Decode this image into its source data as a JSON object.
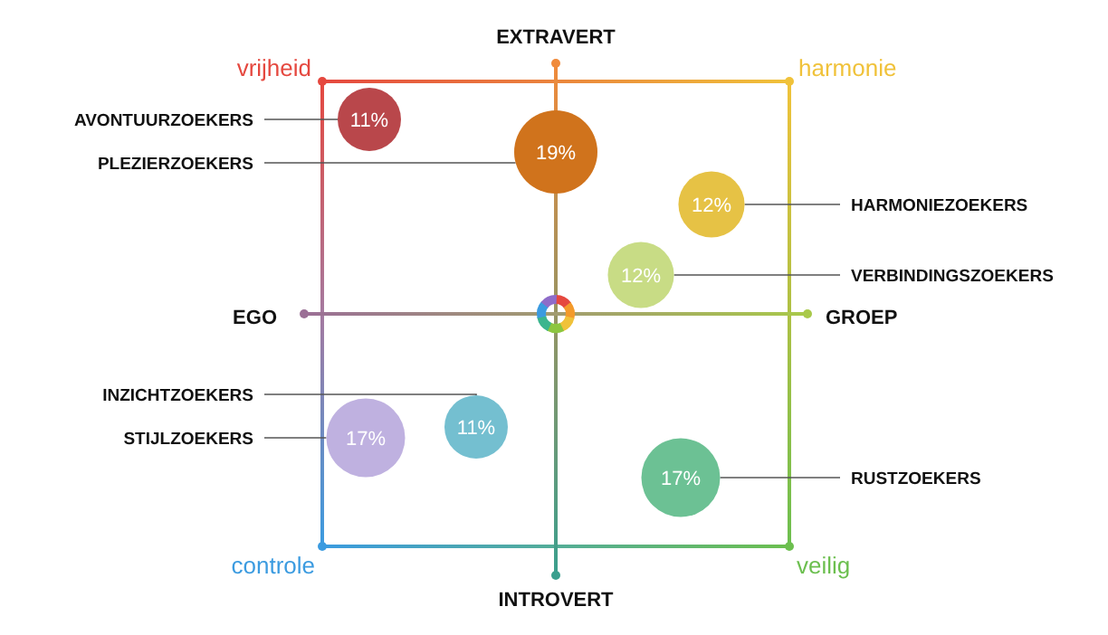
{
  "chart_data": {
    "type": "other",
    "annotations": [
      "EXTRAVERT",
      "vrijheid",
      "harmonie",
      "EGO",
      "GROEP",
      "controle",
      "INTROVERT",
      "veilig"
    ],
    "categories": [
      "AVONTUURZOEKERS",
      "PLEZIERZOEKERS",
      "HARMONIEZOEKERS",
      "VERBINDINGSZOEKERS",
      "INZICHTZOEKERS",
      "STIJLZOEKERS",
      "RUSTZOEKERS"
    ],
    "values": [
      11,
      19,
      12,
      12,
      11,
      17,
      17
    ],
    "colors": [
      "#b9474b",
      "#d0731c",
      "#e6c245",
      "#c8dc85",
      "#74bfd0",
      "#bfb1e0",
      "#6cc194"
    ],
    "value_labels": [
      "11%",
      "19%",
      "12%",
      "12%",
      "11%",
      "17%",
      "17%"
    ]
  }
}
